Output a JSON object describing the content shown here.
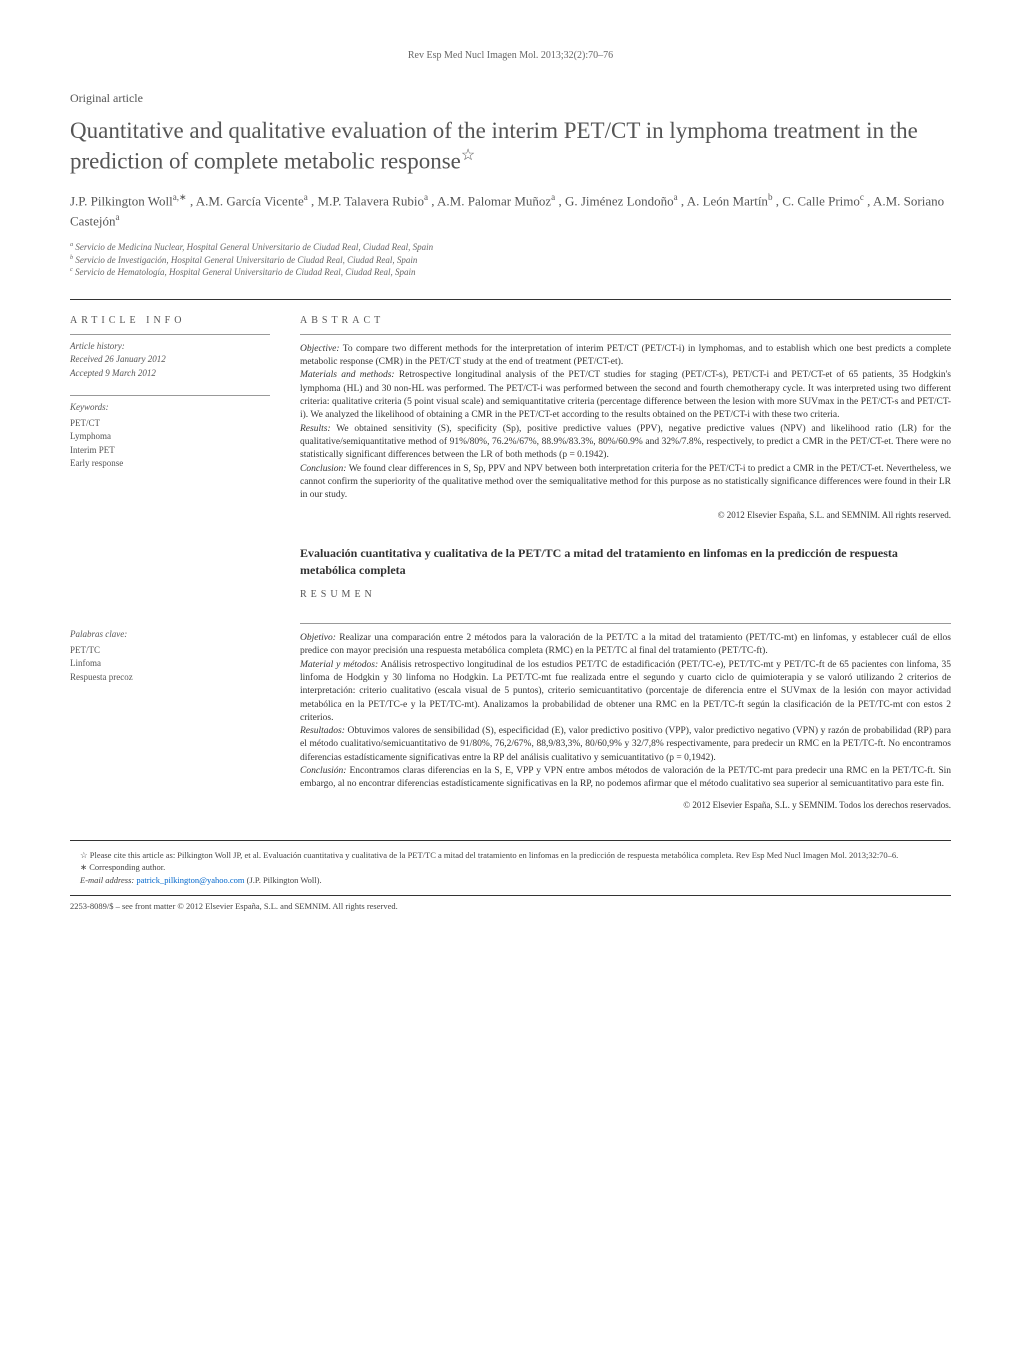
{
  "journal_ref": "Rev Esp Med Nucl Imagen Mol. 2013;32(2):70–76",
  "article_type": "Original article",
  "title": "Quantitative and qualitative evaluation of the interim PET/CT in lymphoma treatment in the prediction of complete metabolic response",
  "title_star": "☆",
  "authors_line1": "J.P. Pilkington Woll",
  "authors_sup1": "a,∗",
  "authors_line2": ",  A.M. García Vicente",
  "authors_sup2": "a",
  "authors_line3": ",  M.P. Talavera Rubio",
  "authors_sup3": "a",
  "authors_line4": ",  A.M. Palomar Muñoz",
  "authors_sup4": "a",
  "authors_line5": ", G. Jiménez Londoño",
  "authors_sup5": "a",
  "authors_line6": ",  A. León Martín",
  "authors_sup6": "b",
  "authors_line7": ",  C. Calle Primo",
  "authors_sup7": "c",
  "authors_line8": ",  A.M. Soriano Castejón",
  "authors_sup8": "a",
  "affiliations": {
    "a": "Servicio de Medicina Nuclear, Hospital General Universitario de Ciudad Real, Ciudad Real, Spain",
    "b": "Servicio de Investigación, Hospital General Universitario de Ciudad Real, Ciudad Real, Spain",
    "c": "Servicio de Hematología, Hospital General Universitario de Ciudad Real, Ciudad Real, Spain"
  },
  "article_info_heading": "article info",
  "abstract_heading": "abstract",
  "resumen_heading": "resumen",
  "history": {
    "label": "Article history:",
    "received": "Received 26 January 2012",
    "accepted": "Accepted 9 March 2012"
  },
  "keywords_en": {
    "label": "Keywords:",
    "items": [
      "PET/CT",
      "Lymphoma",
      "Interim PET",
      "Early response"
    ]
  },
  "keywords_es": {
    "label": "Palabras clave:",
    "items": [
      "PET/TC",
      "Linfoma",
      "Respuesta precoz"
    ]
  },
  "abstract_en": {
    "objective_label": "Objective:",
    "objective": " To compare two different methods for the interpretation of interim PET/CT (PET/CT-i) in lymphomas, and to establish which one best predicts a complete metabolic response (CMR) in the PET/CT study at the end of treatment (PET/CT-et).",
    "methods_label": "Materials and methods:",
    "methods": " Retrospective longitudinal analysis of the PET/CT studies for staging (PET/CT-s), PET/CT-i and PET/CT-et of 65 patients, 35 Hodgkin's lymphoma (HL) and 30 non-HL was performed. The PET/CT-i was performed between the second and fourth chemotherapy cycle. It was interpreted using two different criteria: qualitative criteria (5 point visual scale) and semiquantitative criteria (percentage difference between the lesion with more SUVmax in the PET/CT-s and PET/CT-i). We analyzed the likelihood of obtaining a CMR in the PET/CT-et according to the results obtained on the PET/CT-i with these two criteria.",
    "results_label": "Results:",
    "results": " We obtained sensitivity (S), specificity (Sp), positive predictive values (PPV), negative predictive values (NPV) and likelihood ratio (LR) for the qualitative/semiquantitative method of 91%/80%, 76.2%/67%, 88.9%/83.3%, 80%/60.9% and 32%/7.8%, respectively, to predict a CMR in the PET/CT-et. There were no statistically significant differences between the LR of both methods (p = 0.1942).",
    "conclusion_label": "Conclusion:",
    "conclusion": " We found clear differences in S, Sp, PPV and NPV between both interpretation criteria for the PET/CT-i to predict a CMR in the PET/CT-et. Nevertheless, we cannot confirm the superiority of the qualitative method over the semiqualitative method for this purpose as no statistically significance differences were found in their LR in our study."
  },
  "copyright_en": "© 2012 Elsevier España, S.L. and SEMNIM. All rights reserved.",
  "spanish_title": "Evaluación cuantitativa y cualitativa de la PET/TC a mitad del tratamiento en linfomas en la predicción de respuesta metabólica completa",
  "abstract_es": {
    "objective_label": "Objetivo:",
    "objective": " Realizar una comparación entre 2 métodos para la valoración de la PET/TC a la mitad del tratamiento (PET/TC-mt) en linfomas, y establecer cuál de ellos predice con mayor precisión una respuesta metabólica completa (RMC) en la PET/TC al final del tratamiento (PET/TC-ft).",
    "methods_label": "Material y métodos:",
    "methods": " Análisis retrospectivo longitudinal de los estudios PET/TC de estadificación (PET/TC-e), PET/TC-mt y PET/TC-ft de 65 pacientes con linfoma, 35 linfoma de Hodgkin y 30 linfoma no Hodgkin. La PET/TC-mt fue realizada entre el segundo y cuarto ciclo de quimioterapia y se valoró utilizando 2 criterios de interpretación: criterio cualitativo (escala visual de 5 puntos), criterio semicuantitativo (porcentaje de diferencia entre el SUVmax de la lesión con mayor actividad metabólica en la PET/TC-e y la PET/TC-mt). Analizamos la probabilidad de obtener una RMC en la PET/TC-ft según la clasificación de la PET/TC-mt con estos 2 criterios.",
    "results_label": "Resultados:",
    "results": " Obtuvimos valores de sensibilidad (S), especificidad (E), valor predictivo positivo (VPP), valor predictivo negativo (VPN) y razón de probabilidad (RP) para el método cualitativo/semicuantitativo de 91/80%, 76,2/67%, 88,9/83,3%, 80/60,9% y 32/7,8% respectivamente, para predecir un RMC en la PET/TC-ft. No encontramos diferencias estadísticamente significativas entre la RP del análisis cualitativo y semicuantitativo (p = 0,1942).",
    "conclusion_label": "Conclusión:",
    "conclusion": " Encontramos claras diferencias en la S, E, VPP y VPN entre ambos métodos de valoración de la PET/TC-mt para predecir una RMC en la PET/TC-ft. Sin embargo, al no encontrar diferencias estadísticamente significativas en la RP, no podemos afirmar que el método cualitativo sea superior al semicuantitativo para este fin."
  },
  "copyright_es": "© 2012 Elsevier España, S.L. y SEMNIM. Todos los derechos reservados.",
  "footnotes": {
    "cite": "☆ Please cite this article as: Pilkington Woll JP, et al. Evaluación cuantitativa y cualitativa de la PET/TC a mitad del tratamiento en linfomas en la predicción de respuesta metabólica completa. Rev Esp Med Nucl Imagen Mol. 2013;32:70–6.",
    "corresponding": "∗ Corresponding author.",
    "email_label": "E-mail address:",
    "email": "patrick_pilkington@yahoo.com",
    "email_author": " (J.P. Pilkington Woll)."
  },
  "issn_line": "2253-8089/$ – see front matter © 2012 Elsevier España, S.L. and SEMNIM. All rights reserved."
}
